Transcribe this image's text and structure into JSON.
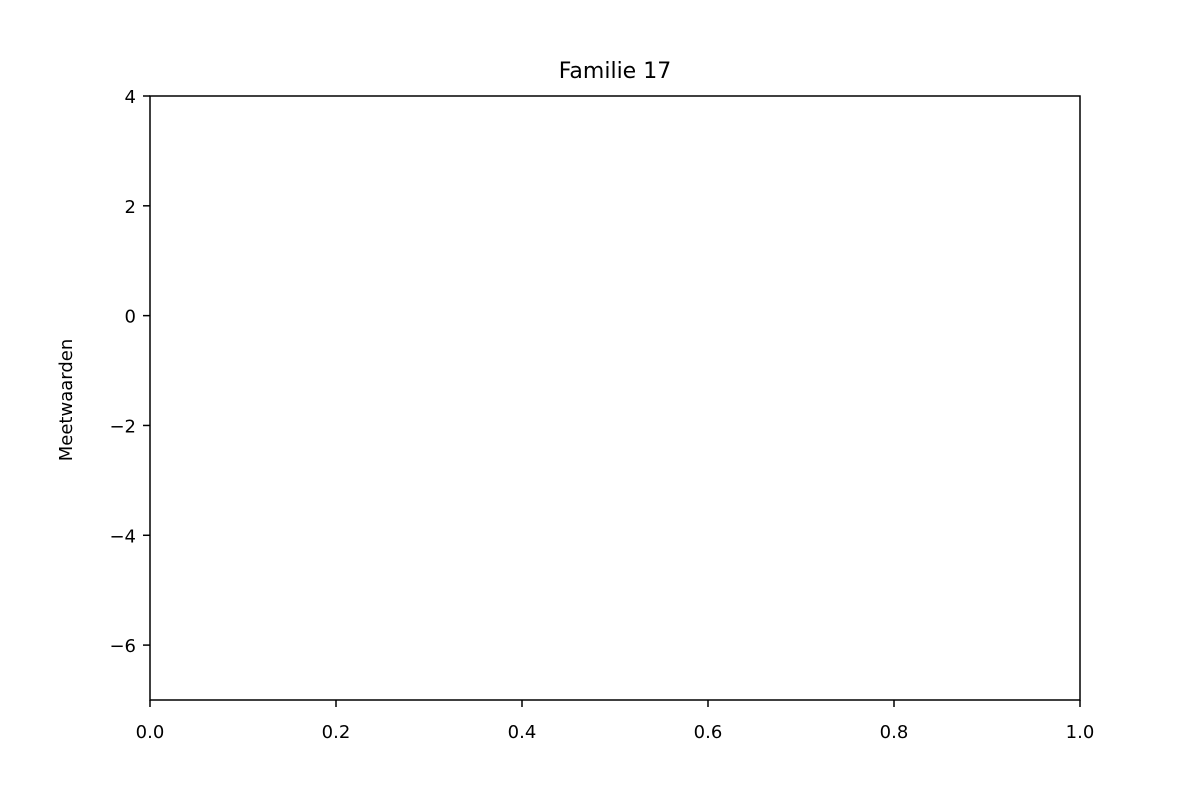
{
  "chart_data": {
    "type": "line",
    "title": "Familie 17",
    "xlabel": "",
    "ylabel": "Meetwaarden",
    "xlim": [
      0.0,
      1.0
    ],
    "ylim": [
      -7.0,
      4.0
    ],
    "x_ticks": [
      0.0,
      0.2,
      0.4,
      0.6,
      0.8,
      1.0
    ],
    "x_tick_labels": [
      "0.0",
      "0.2",
      "0.4",
      "0.6",
      "0.8",
      "1.0"
    ],
    "y_ticks": [
      -6,
      -4,
      -2,
      0,
      2,
      4
    ],
    "y_tick_labels": [
      "−6",
      "−4",
      "−2",
      "0",
      "2",
      "4"
    ],
    "grid": false,
    "series": []
  }
}
